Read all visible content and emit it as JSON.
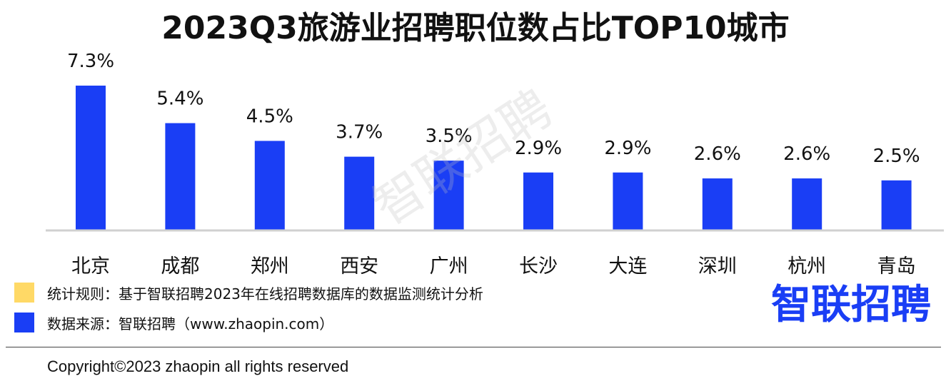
{
  "title": "2023Q3旅游业招聘职位数占比TOP10城市",
  "watermark": "智联招聘",
  "colors": {
    "bar": "#1a3ef5",
    "note_rule": "#ffd966",
    "note_source": "#1a3ef5",
    "axis": "#d0d0d0",
    "brand": "#1a3ef5"
  },
  "chart_data": {
    "type": "bar",
    "categories": [
      "北京",
      "成都",
      "郑州",
      "西安",
      "广州",
      "长沙",
      "大连",
      "深圳",
      "杭州",
      "青岛"
    ],
    "values": [
      7.3,
      5.4,
      4.5,
      3.7,
      3.5,
      2.9,
      2.9,
      2.6,
      2.6,
      2.5
    ],
    "data_labels": [
      "7.3%",
      "5.4%",
      "4.5%",
      "3.7%",
      "3.5%",
      "2.9%",
      "2.9%",
      "2.6%",
      "2.6%",
      "2.5%"
    ],
    "unit": "%",
    "ylim": [
      0,
      7.3
    ],
    "grid": false,
    "title": "2023Q3旅游业招聘职位数占比TOP10城市"
  },
  "notes": {
    "rule": "统计规则：基于智联招聘2023年在线招聘数据库的数据监测统计分析",
    "source": "数据来源：智联招聘（www.zhaopin.com）"
  },
  "brand": "智联招聘",
  "copyright": "Copyright©2023 zhaopin all rights reserved"
}
